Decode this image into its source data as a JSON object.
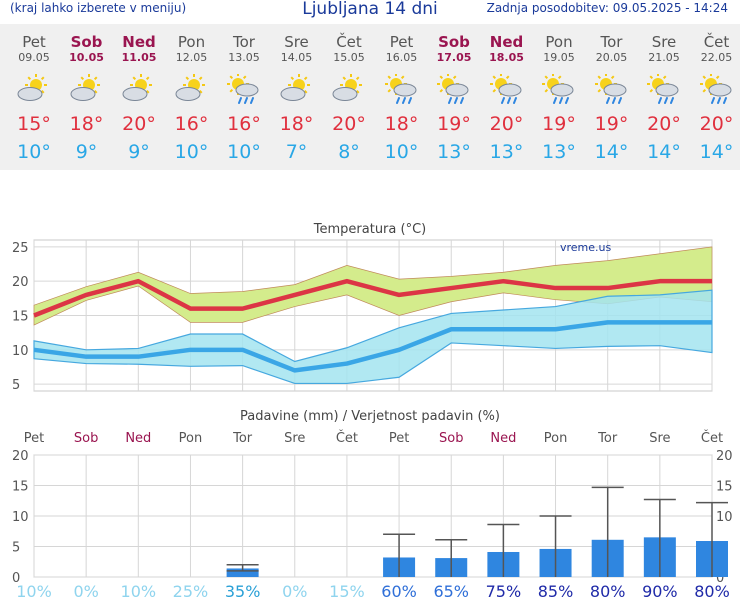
{
  "header": {
    "left_note": "(kraj lahko izberete v meniju)",
    "title": "Ljubljana 14 dni",
    "updated": "Zadnja posodobitev: 09.05.2025 - 14:24"
  },
  "colors": {
    "max_temp": "#e0303e",
    "min_temp": "#29a7e6",
    "weekend": "#9a1550",
    "precip_bar": "#2f86e0"
  },
  "days": [
    {
      "name": "Pet",
      "date": "09.05",
      "weekend": false,
      "icon": "partly-cloudy-icon",
      "max": "15°",
      "min": "10°"
    },
    {
      "name": "Sob",
      "date": "10.05",
      "weekend": true,
      "icon": "partly-cloudy-icon",
      "max": "18°",
      "min": "9°"
    },
    {
      "name": "Ned",
      "date": "11.05",
      "weekend": true,
      "icon": "partly-cloudy-icon",
      "max": "20°",
      "min": "9°"
    },
    {
      "name": "Pon",
      "date": "12.05",
      "weekend": false,
      "icon": "partly-cloudy-icon",
      "max": "16°",
      "min": "10°"
    },
    {
      "name": "Tor",
      "date": "13.05",
      "weekend": false,
      "icon": "sun-rain-icon",
      "max": "16°",
      "min": "10°"
    },
    {
      "name": "Sre",
      "date": "14.05",
      "weekend": false,
      "icon": "partly-cloudy-icon",
      "max": "18°",
      "min": "7°"
    },
    {
      "name": "Čet",
      "date": "15.05",
      "weekend": false,
      "icon": "partly-cloudy-icon",
      "max": "20°",
      "min": "8°"
    },
    {
      "name": "Pet",
      "date": "16.05",
      "weekend": false,
      "icon": "sun-rain-icon",
      "max": "18°",
      "min": "10°"
    },
    {
      "name": "Sob",
      "date": "17.05",
      "weekend": true,
      "icon": "sun-rain-icon",
      "max": "19°",
      "min": "13°"
    },
    {
      "name": "Ned",
      "date": "18.05",
      "weekend": true,
      "icon": "sun-rain-icon",
      "max": "20°",
      "min": "13°"
    },
    {
      "name": "Pon",
      "date": "19.05",
      "weekend": false,
      "icon": "sun-rain-icon",
      "max": "19°",
      "min": "13°"
    },
    {
      "name": "Tor",
      "date": "20.05",
      "weekend": false,
      "icon": "sun-rain-icon",
      "max": "19°",
      "min": "14°"
    },
    {
      "name": "Sre",
      "date": "21.05",
      "weekend": false,
      "icon": "sun-rain-icon",
      "max": "20°",
      "min": "14°"
    },
    {
      "name": "Čet",
      "date": "22.05",
      "weekend": false,
      "icon": "sun-rain-icon",
      "max": "20°",
      "min": "14°"
    }
  ],
  "chart_data": [
    {
      "type": "line",
      "title": "Temperatura (°C)",
      "watermark": "vreme.us",
      "ylim": [
        4,
        26
      ],
      "yticks": [
        5,
        10,
        15,
        20,
        25
      ],
      "grid": true,
      "series": [
        {
          "values": [
            15,
            18,
            20,
            16,
            16,
            18,
            20,
            18,
            19,
            20,
            19,
            19,
            20,
            20
          ],
          "upper": [
            16.5,
            19.2,
            21.3,
            18.2,
            18.5,
            19.5,
            22.3,
            20.3,
            20.7,
            21.3,
            22.3,
            23.0,
            24.0,
            25.0
          ],
          "lower": [
            13.6,
            17.2,
            19.3,
            14.0,
            14.0,
            16.3,
            18.0,
            15.0,
            17.0,
            18.3,
            17.3,
            16.7,
            17.7,
            17.0
          ],
          "color": "#dc3545",
          "band": "#d4ec8c"
        },
        {
          "values": [
            10,
            9,
            9,
            10,
            10,
            7,
            8,
            10,
            13,
            13,
            13,
            14,
            14,
            14
          ],
          "upper": [
            11.3,
            10.0,
            10.2,
            12.3,
            12.3,
            8.3,
            10.3,
            13.2,
            15.3,
            15.8,
            16.3,
            17.8,
            18.0,
            18.7
          ],
          "lower": [
            8.7,
            8.0,
            7.9,
            7.6,
            7.7,
            5.1,
            5.1,
            6.0,
            11.0,
            10.6,
            10.2,
            10.5,
            10.6,
            9.6
          ],
          "color": "#3aa6e6",
          "band": "#a3e4f0"
        }
      ]
    },
    {
      "type": "bar",
      "title": "Padavine (mm) / Verjetnost padavin (%)",
      "categories": [
        "Pet",
        "Sob",
        "Ned",
        "Pon",
        "Tor",
        "Sre",
        "Čet",
        "Pet",
        "Sob",
        "Ned",
        "Pon",
        "Tor",
        "Sre",
        "Čet"
      ],
      "weekend": [
        false,
        true,
        true,
        false,
        false,
        false,
        false,
        false,
        true,
        true,
        false,
        false,
        false,
        false
      ],
      "values": [
        0,
        0,
        0,
        0,
        1.4,
        0,
        0,
        3.2,
        3.1,
        4.1,
        4.6,
        6.1,
        6.5,
        5.9
      ],
      "err_low": [
        0,
        0,
        0,
        0,
        1.0,
        0,
        0,
        0,
        0,
        0,
        0,
        0,
        0,
        0
      ],
      "err_high": [
        0,
        0,
        0,
        0,
        2.0,
        0,
        0,
        7.0,
        6.1,
        8.6,
        10.0,
        14.7,
        12.7,
        12.2
      ],
      "probability": [
        "10%",
        "0%",
        "10%",
        "25%",
        "35%",
        "0%",
        "15%",
        "60%",
        "65%",
        "75%",
        "85%",
        "80%",
        "90%",
        "80%"
      ],
      "probability_levels": [
        10,
        0,
        10,
        25,
        35,
        0,
        15,
        60,
        65,
        75,
        85,
        80,
        90,
        80
      ],
      "ylim": [
        0,
        20
      ],
      "yticks": [
        0,
        5,
        10,
        15,
        20
      ]
    }
  ]
}
